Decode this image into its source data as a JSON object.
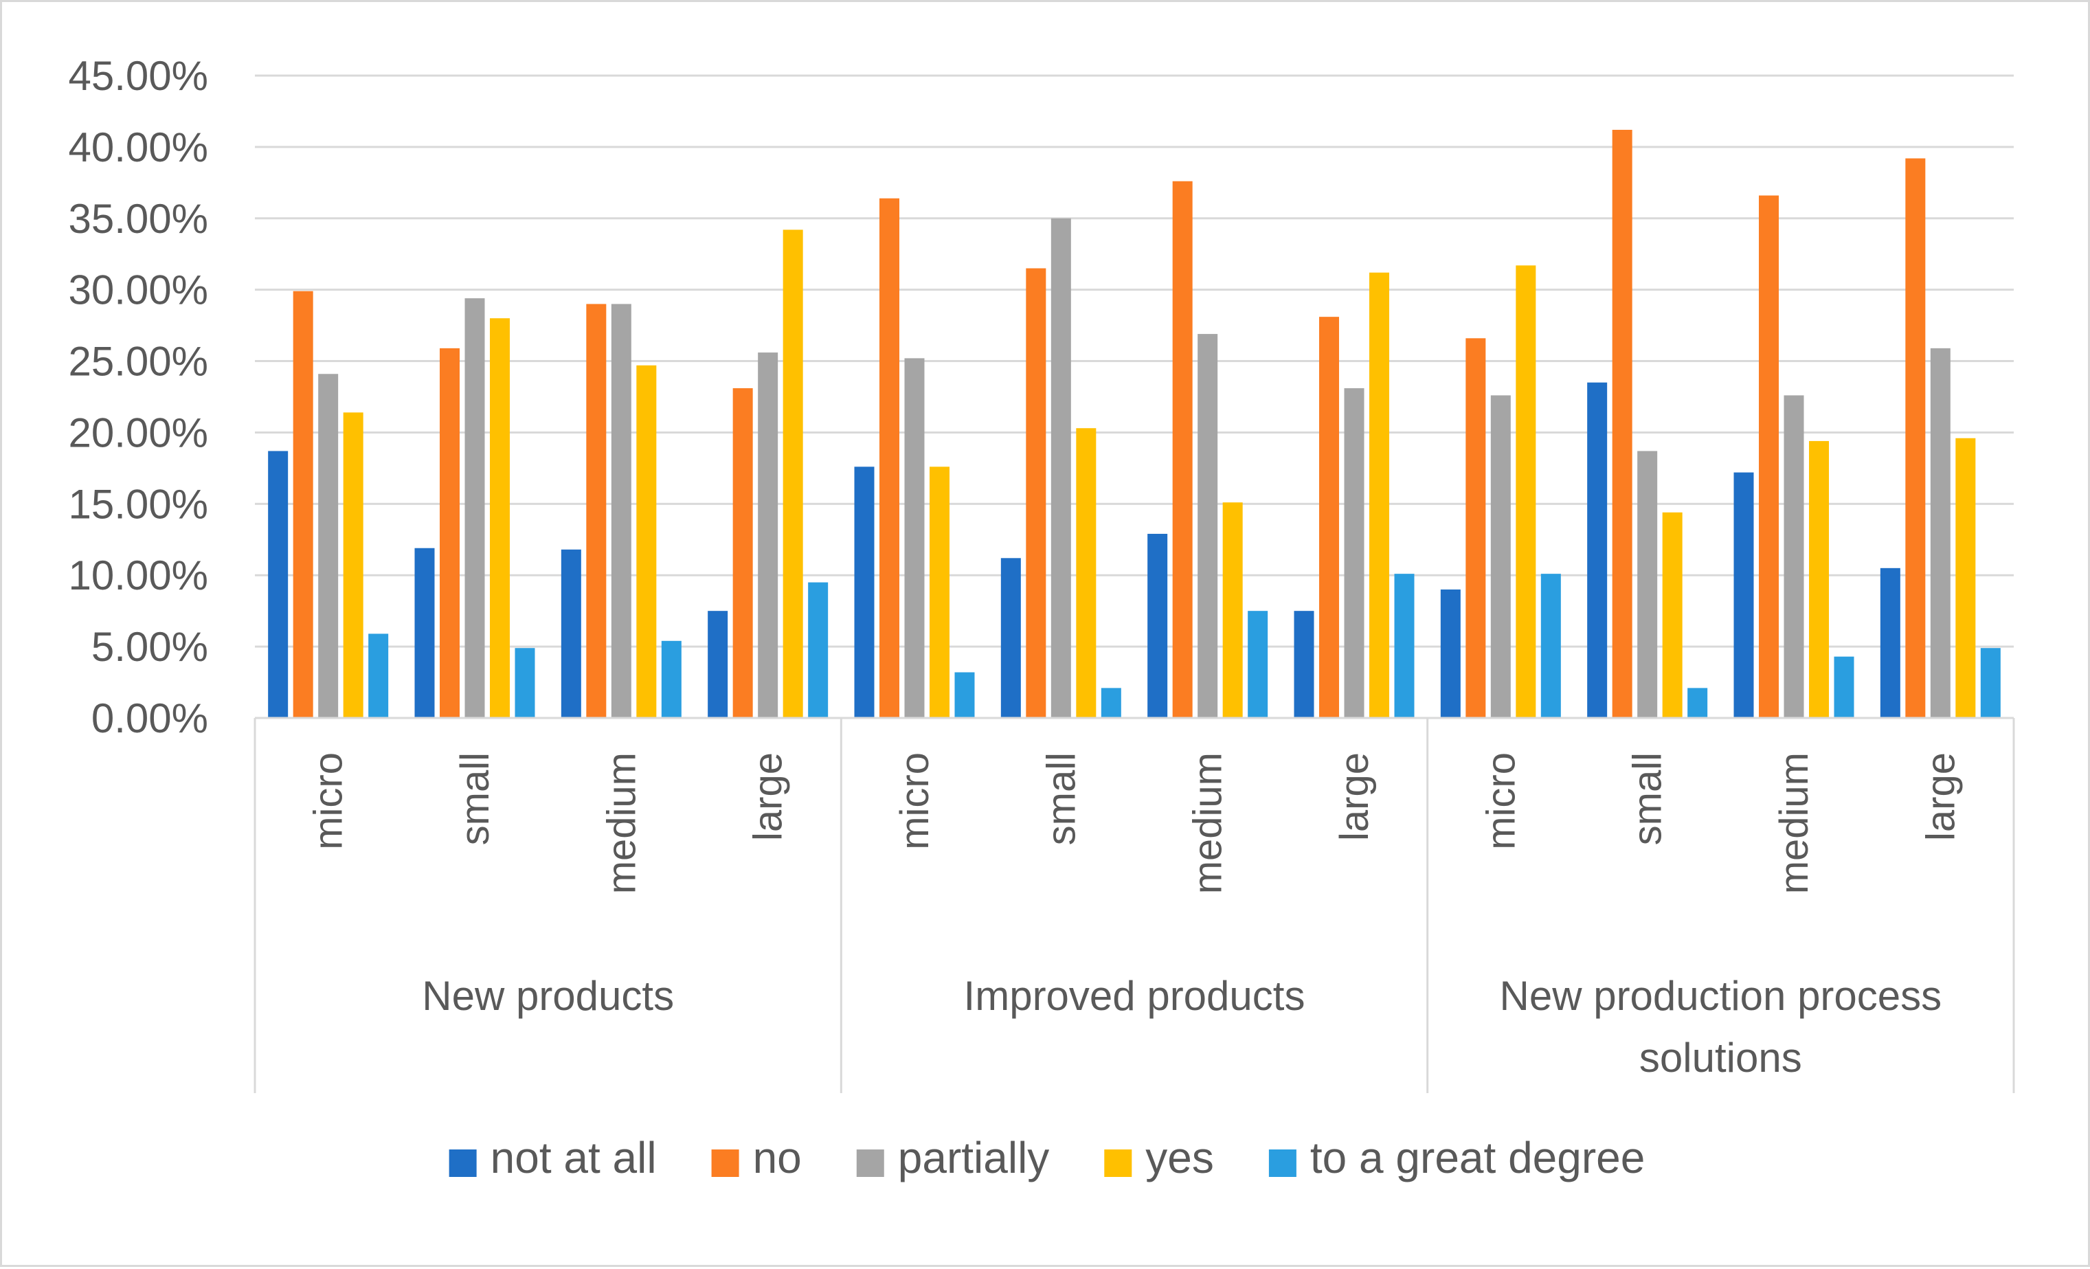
{
  "chart_data": {
    "type": "bar",
    "title": "",
    "xlabel": "",
    "ylabel": "",
    "ylim": [
      0,
      45
    ],
    "yticks": [
      "0.00%",
      "5.00%",
      "10.00%",
      "15.00%",
      "20.00%",
      "25.00%",
      "30.00%",
      "35.00%",
      "40.00%",
      "45.00%"
    ],
    "grid": true,
    "legend_position": "bottom",
    "groups": [
      {
        "label": "New products",
        "categories": [
          "micro",
          "small",
          "medium",
          "large"
        ]
      },
      {
        "label": "Improved products",
        "categories": [
          "micro",
          "small",
          "medium",
          "large"
        ]
      },
      {
        "label": "New production process solutions",
        "label_lines": [
          "New production process",
          "solutions"
        ],
        "categories": [
          "micro",
          "small",
          "medium",
          "large"
        ]
      }
    ],
    "series": [
      {
        "name": "not at all",
        "color": "#1f6fc6",
        "values": [
          18.7,
          11.9,
          11.8,
          7.5,
          17.6,
          11.2,
          12.9,
          7.5,
          9.0,
          23.5,
          17.2,
          10.5
        ]
      },
      {
        "name": "no",
        "color": "#fb7d22",
        "values": [
          29.9,
          25.9,
          29.0,
          23.1,
          36.4,
          31.5,
          37.6,
          28.1,
          26.6,
          41.2,
          36.6,
          39.2
        ]
      },
      {
        "name": "partially",
        "color": "#a5a5a5",
        "values": [
          24.1,
          29.4,
          29.0,
          25.6,
          25.2,
          35.0,
          26.9,
          23.1,
          22.6,
          18.7,
          22.6,
          25.9
        ]
      },
      {
        "name": "yes",
        "color": "#ffc000",
        "values": [
          21.4,
          28.0,
          24.7,
          34.2,
          17.6,
          20.3,
          15.1,
          31.2,
          31.7,
          14.4,
          19.4,
          19.6
        ]
      },
      {
        "name": "to a great degree",
        "color": "#2a9ee0",
        "values": [
          5.9,
          4.9,
          5.4,
          9.5,
          3.2,
          2.1,
          7.5,
          10.1,
          10.1,
          2.1,
          4.3,
          4.9
        ]
      }
    ]
  }
}
